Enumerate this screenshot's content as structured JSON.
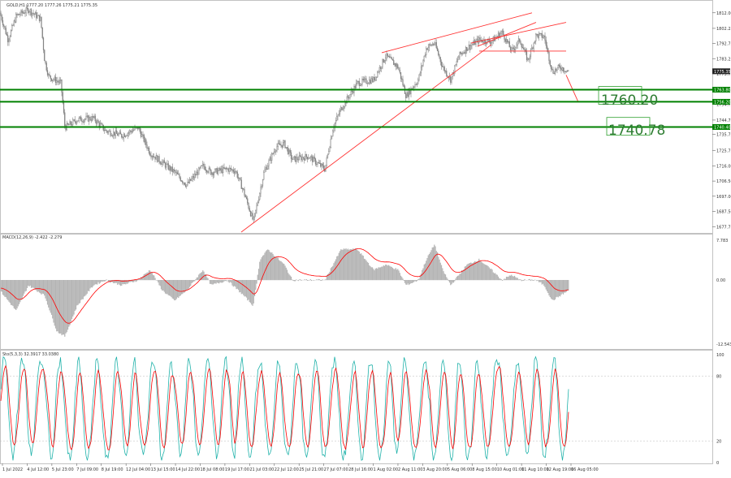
{
  "window": {
    "symbol_header": "GOLD,H1  1777.20 1777.26 1775.21 1775.35",
    "macd_header": "MACD(12,26,9) -2.422 -2.279",
    "stoch_header": "Sto(5,3,3) 32.3917 33.0380"
  },
  "colors": {
    "background": "#ffffff",
    "candle": "#808080",
    "trendline": "#ff3333",
    "level_line": "#008000",
    "level_box_border": "#2ea02e",
    "level_text": "#2e7d32",
    "histogram": "#b4b4b4",
    "signal": "#ff0000",
    "stoch_main": "#20b2aa",
    "stoch_signal": "#ff0000",
    "axis_text": "#333333",
    "separator": "#808080"
  },
  "annotations": {
    "level_1": "1760.20",
    "level_2": "1740.78"
  },
  "chart_data": [
    {
      "type": "candlestick",
      "symbol": "GOLD",
      "timeframe": "H1",
      "ohlc_header": [
        1777.2,
        1777.26,
        1775.21,
        1775.35
      ],
      "y_ticks": [
        "1812.00",
        "1802.25",
        "1792.75",
        "1783.25",
        "1773.75",
        "1764.25",
        "1754.75",
        "1744.75",
        "1735.75",
        "1725.75",
        "1716.00",
        "1706.50",
        "1697.00",
        "1687.50",
        "1677.75"
      ],
      "ylim": [
        1674.5,
        1819.0
      ],
      "current_price": "1775.35",
      "level_labels": [
        "1763.80",
        "1756.20",
        "1740.40"
      ],
      "horizontal_levels": [
        1763.8,
        1756.2,
        1740.4
      ],
      "x_labels": [
        "1 Jul 2022",
        "4 Jul 12:00",
        "5 Jul 23:00",
        "7 Jul 09:00",
        "8 Jul 19:00",
        "12 Jul 04:00",
        "13 Jul 15:00",
        "14 Jul 22:00",
        "18 Jul 08:00",
        "19 Jul 17:00",
        "21 Jul 03:00",
        "22 Jul 12:00",
        "25 Jul 21:00",
        "27 Jul 07:00",
        "28 Jul 16:00",
        "1 Aug 02:00",
        "2 Aug 11:00",
        "3 Aug 20:00",
        "5 Aug 06:00",
        "8 Aug 15:00",
        "10 Aug 01:00",
        "11 Aug 10:00",
        "12 Aug 19:00",
        "16 Aug 05:00"
      ],
      "anchors": [
        [
          0,
          1812
        ],
        [
          10,
          1795
        ],
        [
          20,
          1810
        ],
        [
          35,
          1814
        ],
        [
          50,
          1808
        ],
        [
          55,
          1782
        ],
        [
          60,
          1772
        ],
        [
          75,
          1768
        ],
        [
          80,
          1740
        ],
        [
          95,
          1745
        ],
        [
          115,
          1746
        ],
        [
          130,
          1738
        ],
        [
          150,
          1735
        ],
        [
          170,
          1740
        ],
        [
          185,
          1724
        ],
        [
          200,
          1718
        ],
        [
          215,
          1712
        ],
        [
          230,
          1704
        ],
        [
          250,
          1716
        ],
        [
          260,
          1712
        ],
        [
          280,
          1714
        ],
        [
          290,
          1713
        ],
        [
          300,
          1700
        ],
        [
          312,
          1681
        ],
        [
          325,
          1712
        ],
        [
          340,
          1728
        ],
        [
          350,
          1730
        ],
        [
          360,
          1720
        ],
        [
          380,
          1722
        ],
        [
          400,
          1714
        ],
        [
          410,
          1740
        ],
        [
          420,
          1752
        ],
        [
          440,
          1768
        ],
        [
          460,
          1770
        ],
        [
          475,
          1785
        ],
        [
          490,
          1778
        ],
        [
          500,
          1760
        ],
        [
          515,
          1770
        ],
        [
          525,
          1790
        ],
        [
          535,
          1793
        ],
        [
          545,
          1778
        ],
        [
          555,
          1770
        ],
        [
          565,
          1785
        ],
        [
          575,
          1790
        ],
        [
          590,
          1795
        ],
        [
          605,
          1794
        ],
        [
          618,
          1800
        ],
        [
          630,
          1788
        ],
        [
          640,
          1795
        ],
        [
          650,
          1782
        ],
        [
          660,
          1798
        ],
        [
          670,
          1797
        ],
        [
          680,
          1775
        ],
        [
          690,
          1778
        ],
        [
          700,
          1775
        ]
      ],
      "trendlines": [
        {
          "from": [
            297,
            1674.5
          ],
          "to": [
            605,
            1792
          ]
        },
        {
          "from": [
            470,
            1787
          ],
          "to": [
            655,
            1812
          ]
        },
        {
          "from": [
            580,
            1793
          ],
          "to": [
            697,
            1806
          ]
        },
        {
          "from": [
            588,
            1791
          ],
          "to": [
            660,
            1806
          ]
        },
        {
          "from": [
            590,
            1788
          ],
          "to": [
            697,
            1788
          ]
        },
        {
          "from": [
            697,
            1773
          ],
          "to": [
            712,
            1756
          ]
        }
      ],
      "level_boxes": [
        {
          "label": "1760.20",
          "x": 737,
          "price": 1760.2
        },
        {
          "label": "1740.78",
          "x": 747,
          "price": 1740.8
        }
      ]
    },
    {
      "type": "histogram+line",
      "name": "MACD(12,26,9)",
      "values_header": [
        -2.422,
        -2.279
      ],
      "y_ticks": [
        "7.783",
        "0.00",
        "-12.543"
      ],
      "ylim": [
        -12.543,
        7.783
      ],
      "anchors": [
        [
          0,
          -2
        ],
        [
          20,
          -6
        ],
        [
          35,
          -1
        ],
        [
          55,
          -3
        ],
        [
          70,
          -10
        ],
        [
          80,
          -11
        ],
        [
          95,
          -5
        ],
        [
          115,
          -1
        ],
        [
          130,
          0
        ],
        [
          150,
          -1
        ],
        [
          170,
          0
        ],
        [
          185,
          2
        ],
        [
          200,
          -2
        ],
        [
          215,
          -4
        ],
        [
          230,
          -2
        ],
        [
          250,
          2
        ],
        [
          260,
          -1
        ],
        [
          280,
          0
        ],
        [
          300,
          -3
        ],
        [
          312,
          -5
        ],
        [
          320,
          4
        ],
        [
          330,
          6
        ],
        [
          350,
          3
        ],
        [
          360,
          0
        ],
        [
          380,
          0
        ],
        [
          400,
          0
        ],
        [
          410,
          3
        ],
        [
          420,
          6
        ],
        [
          440,
          6
        ],
        [
          460,
          2
        ],
        [
          475,
          3
        ],
        [
          490,
          2
        ],
        [
          500,
          -1
        ],
        [
          515,
          0
        ],
        [
          525,
          4
        ],
        [
          535,
          7
        ],
        [
          545,
          2
        ],
        [
          555,
          -1
        ],
        [
          565,
          1
        ],
        [
          575,
          3
        ],
        [
          590,
          4
        ],
        [
          605,
          2
        ],
        [
          618,
          0
        ],
        [
          630,
          1
        ],
        [
          640,
          0
        ],
        [
          650,
          0
        ],
        [
          660,
          0
        ],
        [
          670,
          -1
        ],
        [
          680,
          -4
        ],
        [
          690,
          -3
        ],
        [
          700,
          -2
        ]
      ]
    },
    {
      "type": "line",
      "name": "Sto(5,3,3)",
      "values_header": [
        32.3917,
        33.038
      ],
      "y_ticks": [
        "100",
        "80",
        "20",
        "0"
      ],
      "ylim": [
        0,
        100
      ],
      "oscillating": true
    }
  ]
}
